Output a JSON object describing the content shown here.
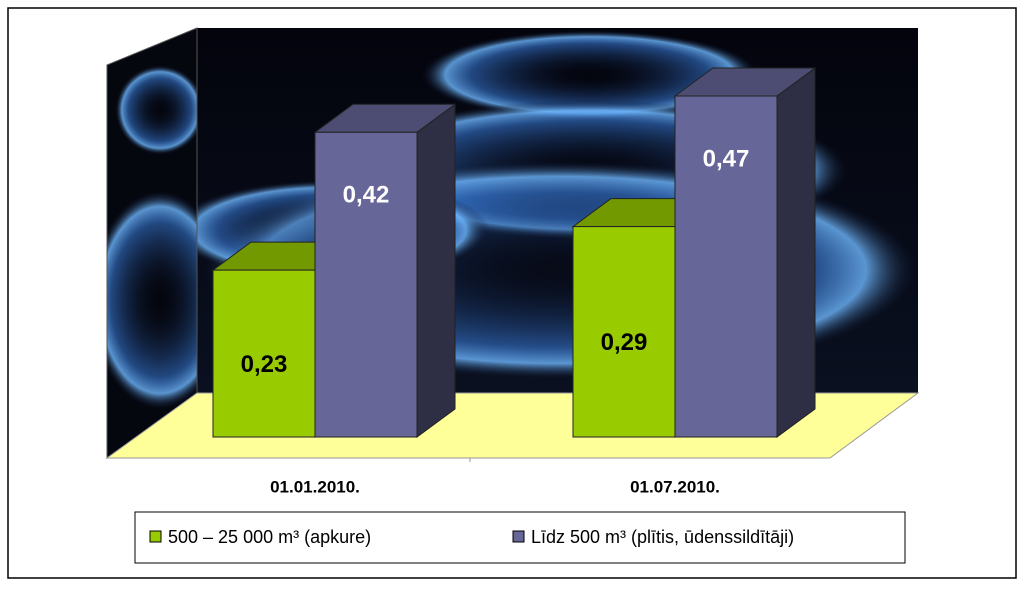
{
  "chart_data": {
    "type": "bar3d",
    "categories": [
      "01.01.2010.",
      "01.07.2010."
    ],
    "series": [
      {
        "name": "500 – 25 000 m³ (apkure)",
        "color": "#99cc00",
        "values": [
          0.23,
          0.29
        ],
        "value_labels": [
          "0,23",
          "0,29"
        ]
      },
      {
        "name": "Līdz 500 m³ (plītis, ūdenssildītāji)",
        "color": "#666699",
        "values": [
          0.42,
          0.47
        ],
        "value_labels": [
          "0,42",
          "0,47"
        ]
      }
    ],
    "legend": "bottom"
  }
}
